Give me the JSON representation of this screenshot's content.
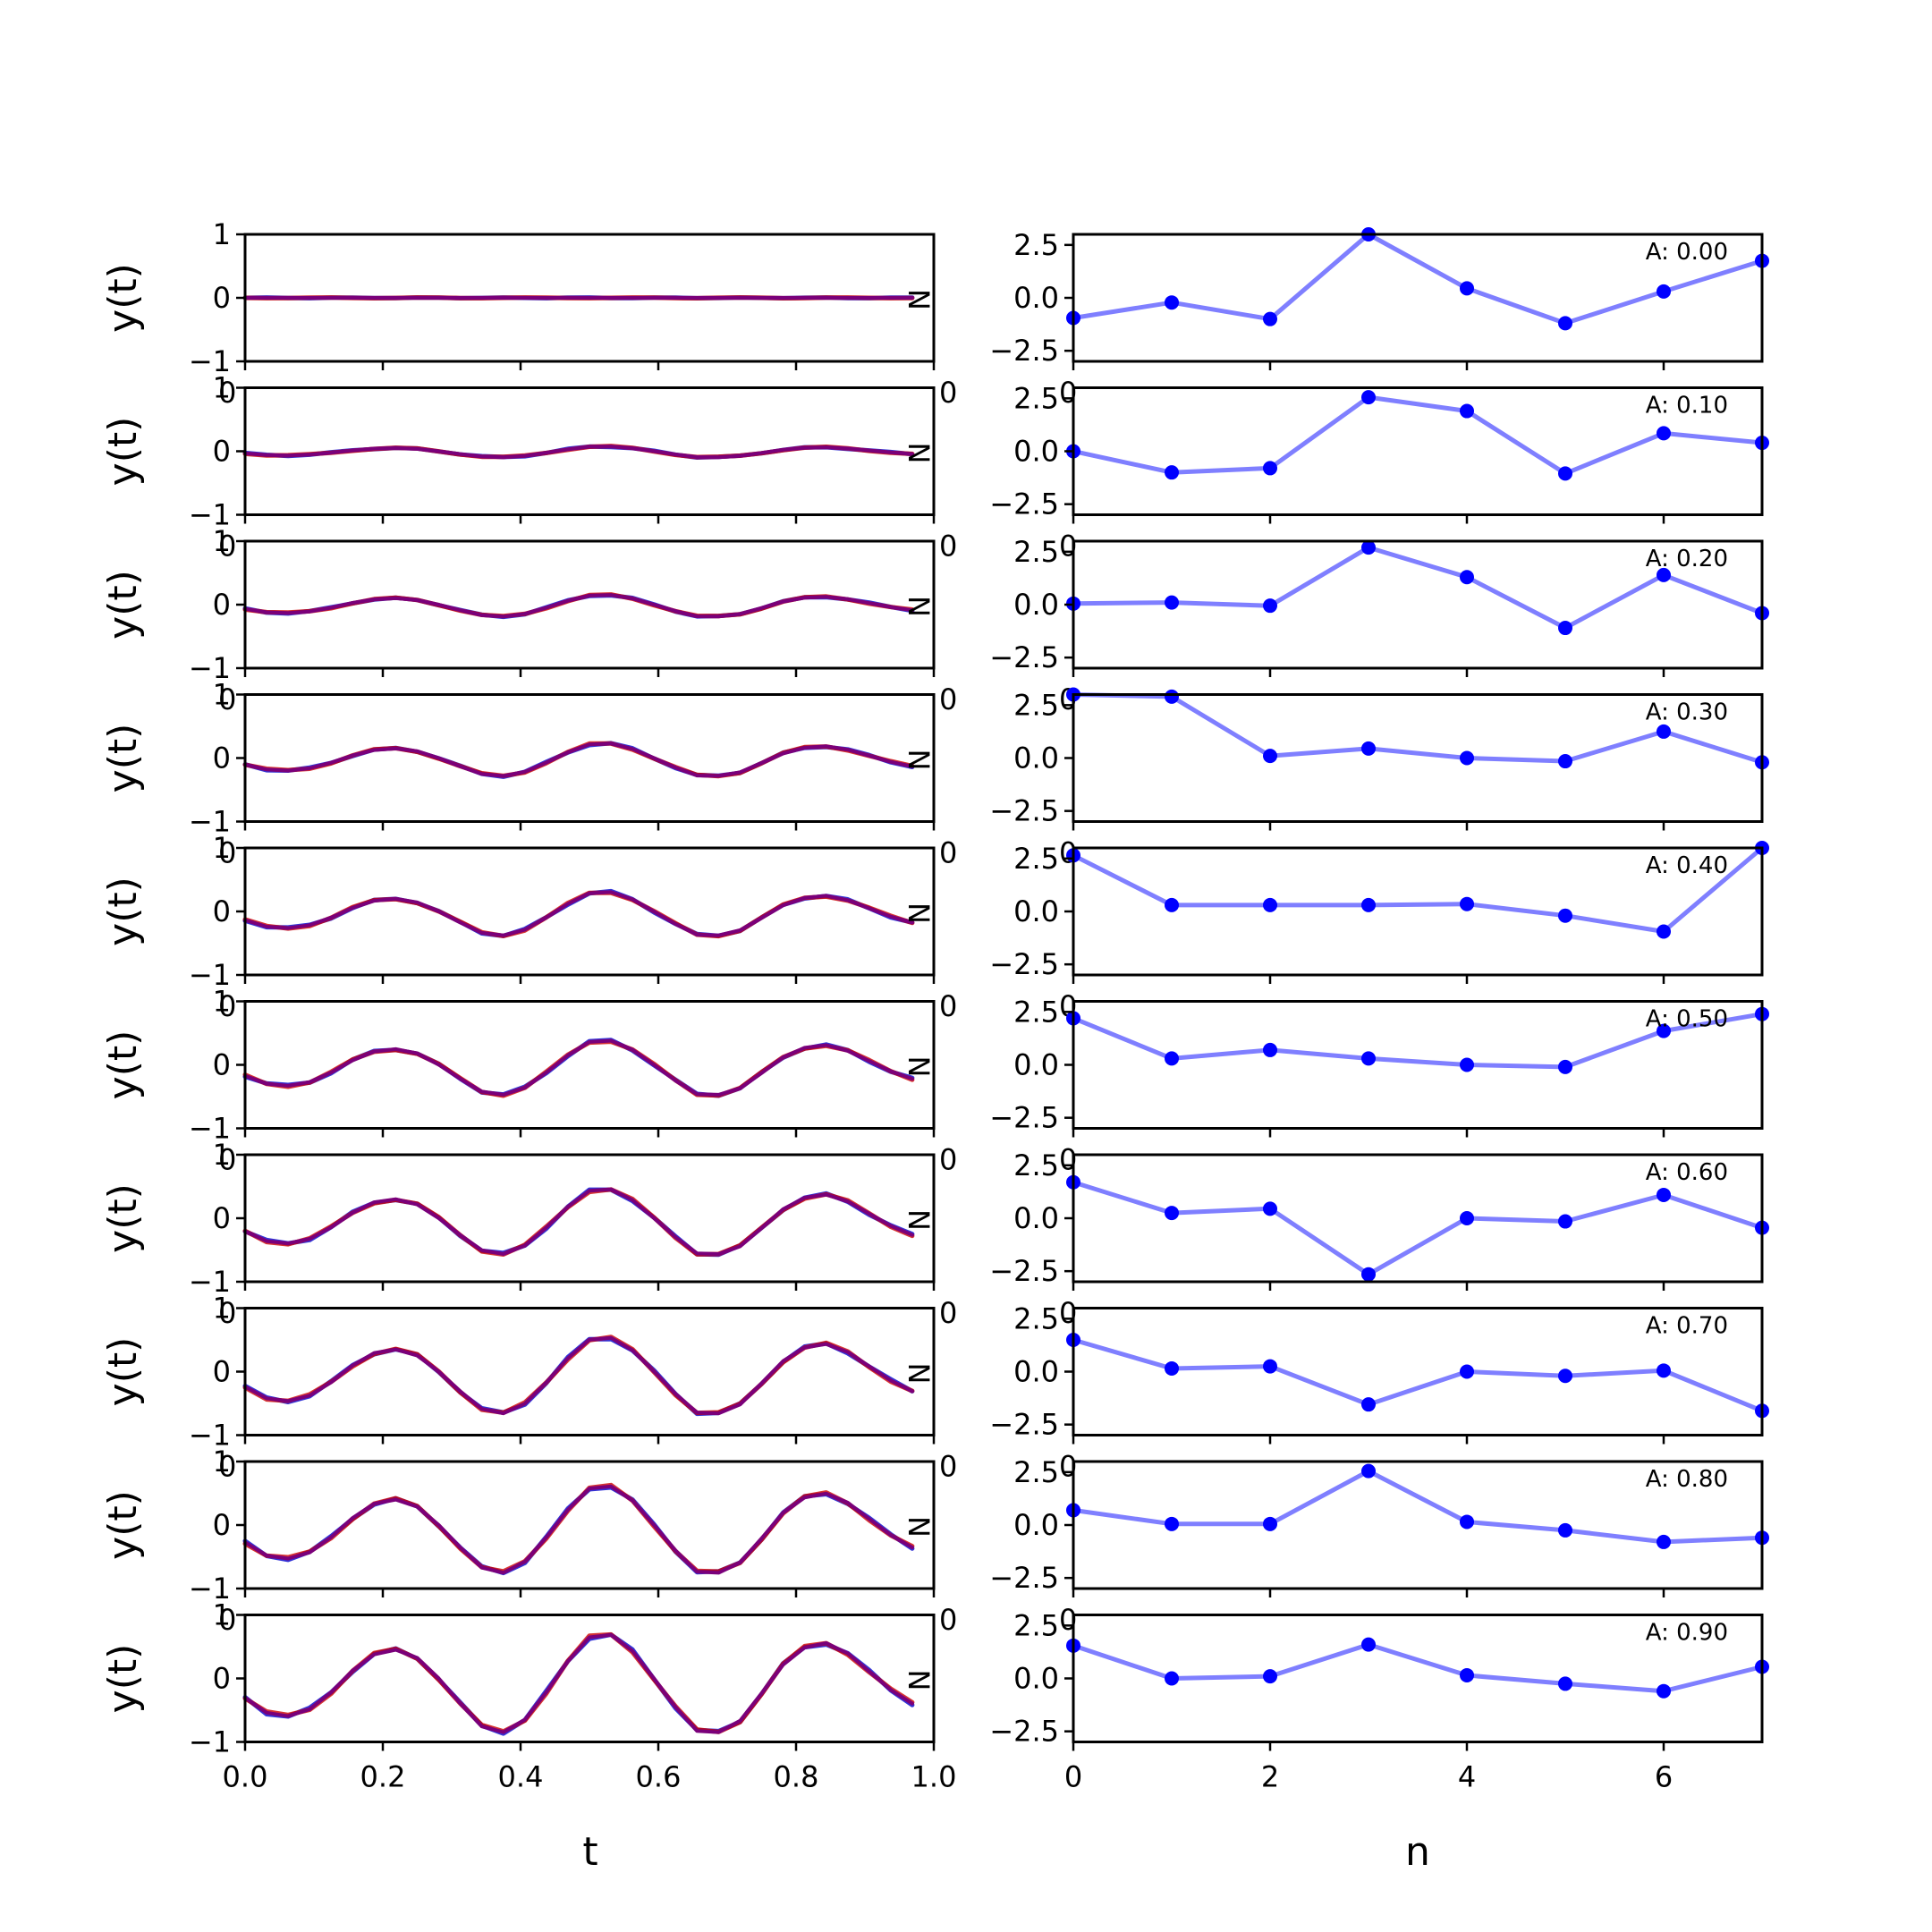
{
  "chart_data": {
    "type": "line",
    "left_column": {
      "xlabel": "t",
      "ylabel": "y(t)",
      "corner_letter": "N",
      "xlim": [
        0.0,
        1.0
      ],
      "ylim": [
        -1,
        1
      ],
      "xticks": [
        0.0,
        0.2,
        0.4,
        0.6,
        0.8,
        1.0
      ],
      "xtick_labels": [
        "0.0",
        "0.2",
        "0.4",
        "0.6",
        "0.8",
        "1.0"
      ],
      "yticks": [
        -1,
        0,
        1
      ],
      "ytick_labels": [
        "−1",
        "0",
        "1"
      ],
      "hidden_tick_label_fragment": "0",
      "t": [
        0.0,
        0.03125,
        0.0625,
        0.09375,
        0.125,
        0.15625,
        0.1875,
        0.21875,
        0.25,
        0.28125,
        0.3125,
        0.34375,
        0.375,
        0.40625,
        0.4375,
        0.46875,
        0.5,
        0.53125,
        0.5625,
        0.59375,
        0.625,
        0.65625,
        0.6875,
        0.71875,
        0.75,
        0.78125,
        0.8125,
        0.84375,
        0.875,
        0.90625,
        0.9375,
        0.96875
      ],
      "base_shape": [
        -0.17,
        -0.3,
        -0.33,
        -0.27,
        -0.12,
        0.07,
        0.21,
        0.25,
        0.18,
        0.0,
        -0.22,
        -0.42,
        -0.47,
        -0.36,
        -0.12,
        0.15,
        0.36,
        0.38,
        0.24,
        0.0,
        -0.25,
        -0.46,
        -0.47,
        -0.37,
        -0.13,
        0.12,
        0.27,
        0.31,
        0.22,
        0.06,
        -0.1,
        -0.22
      ],
      "series": [
        {
          "color": "#0000cc",
          "width": 5
        },
        {
          "color": "#cc0000",
          "width": 5
        },
        {
          "color": "#7a007a",
          "width": 4
        }
      ],
      "amplitudes": [
        0.0,
        0.1,
        0.2,
        0.3,
        0.4,
        0.5,
        0.6,
        0.7,
        0.8,
        0.9
      ]
    },
    "right_column": {
      "xlabel": "n",
      "xlim": [
        0,
        7
      ],
      "ylim": [
        -3.0,
        3.0
      ],
      "xticks": [
        0,
        2,
        4,
        6
      ],
      "xtick_labels": [
        "0",
        "2",
        "4",
        "6"
      ],
      "yticks": [
        2.5,
        0.0,
        -2.5
      ],
      "ytick_labels": [
        "2.5",
        "0.0",
        "−2.5"
      ],
      "hidden_tick_label_fragment": "0",
      "n": [
        0,
        1,
        2,
        3,
        4,
        5,
        6,
        7
      ],
      "line_color": "#0000ff",
      "line_alpha": 0.5,
      "marker_color": "#0000ff",
      "panels": [
        {
          "label": "A: 0.00",
          "values": [
            -0.95,
            -0.22,
            -1.0,
            3.1,
            0.45,
            -1.2,
            0.3,
            1.75
          ]
        },
        {
          "label": "A: 0.10",
          "values": [
            0.0,
            -1.0,
            -0.8,
            2.55,
            1.9,
            -1.05,
            0.85,
            0.4
          ]
        },
        {
          "label": "A: 0.20",
          "values": [
            0.05,
            0.1,
            -0.05,
            2.7,
            1.3,
            -1.1,
            1.4,
            -0.4
          ]
        },
        {
          "label": "A: 0.30",
          "values": [
            3.0,
            2.9,
            0.1,
            0.45,
            0.0,
            -0.15,
            1.25,
            -0.2
          ]
        },
        {
          "label": "A: 0.40",
          "values": [
            2.65,
            0.3,
            0.3,
            0.3,
            0.35,
            -0.2,
            -0.95,
            3.0
          ]
        },
        {
          "label": "A: 0.50",
          "values": [
            2.2,
            0.3,
            0.7,
            0.3,
            0.0,
            -0.1,
            1.6,
            2.4
          ]
        },
        {
          "label": "A: 0.60",
          "values": [
            1.7,
            0.25,
            0.45,
            -2.65,
            0.0,
            -0.15,
            1.1,
            -0.45
          ]
        },
        {
          "label": "A: 0.70",
          "values": [
            1.5,
            0.15,
            0.25,
            -1.55,
            0.0,
            -0.2,
            0.05,
            -1.85
          ]
        },
        {
          "label": "A: 0.80",
          "values": [
            0.7,
            0.05,
            0.05,
            2.55,
            0.15,
            -0.25,
            -0.8,
            -0.6
          ]
        },
        {
          "label": "A: 0.90",
          "values": [
            1.55,
            0.0,
            0.1,
            1.6,
            0.15,
            -0.25,
            -0.6,
            0.55
          ]
        }
      ]
    }
  }
}
